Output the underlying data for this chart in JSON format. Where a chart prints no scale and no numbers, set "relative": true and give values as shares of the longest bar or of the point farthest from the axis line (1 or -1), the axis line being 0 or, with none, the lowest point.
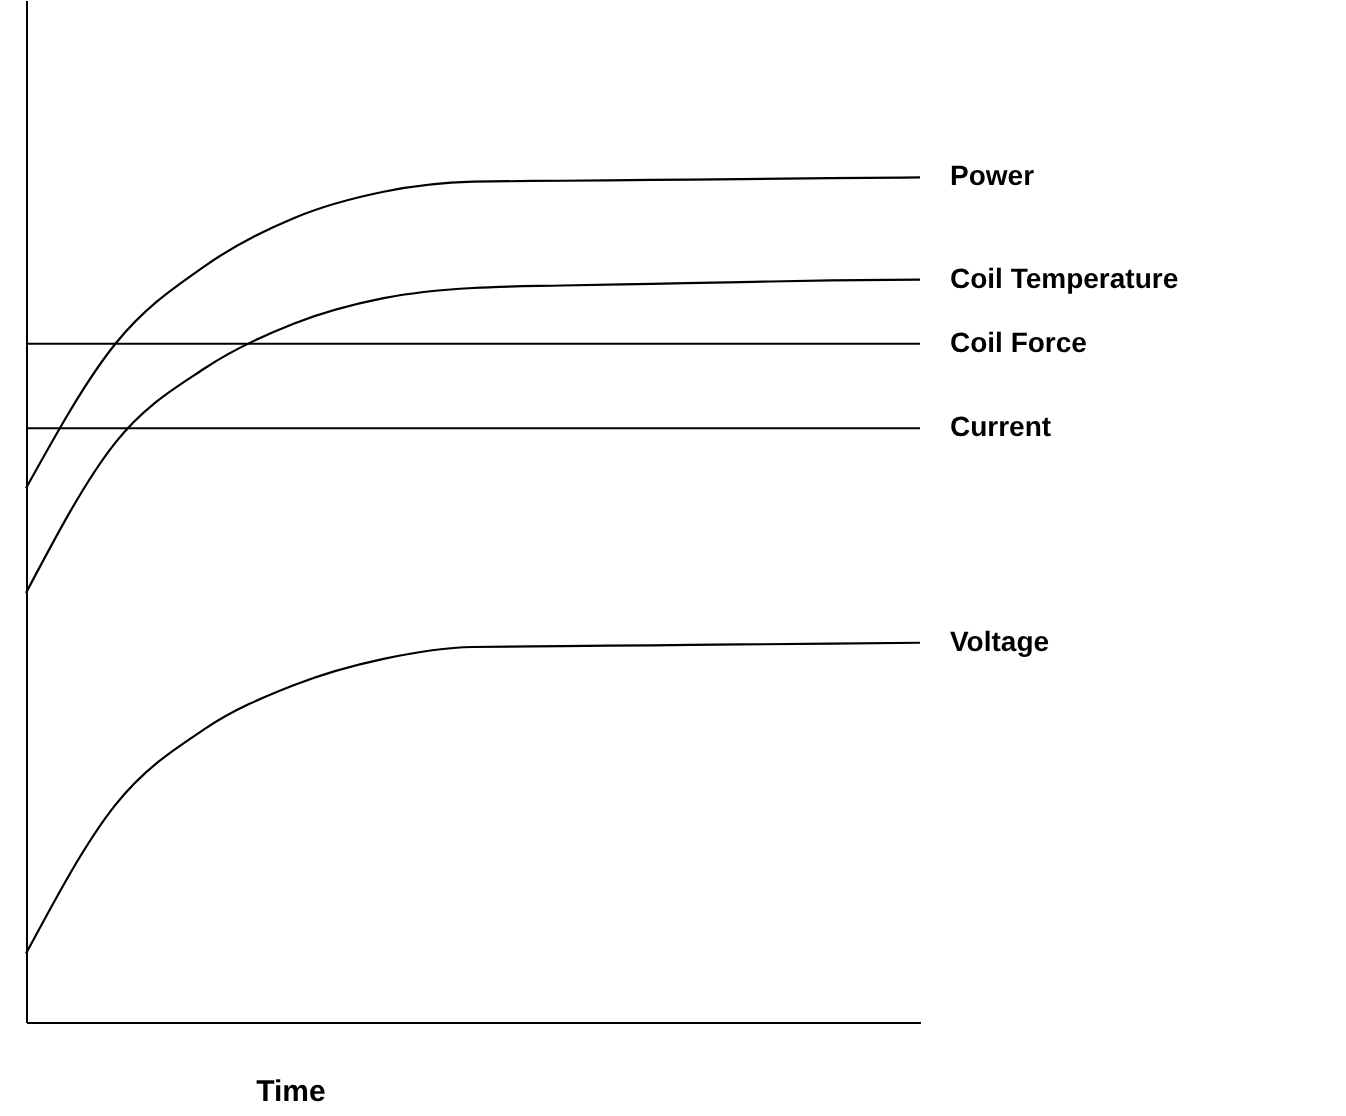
{
  "chart_data": {
    "type": "line",
    "relative": true,
    "xlabel": "Time",
    "categories": [
      null,
      null,
      null,
      null,
      null,
      null,
      null,
      null,
      null,
      null,
      null
    ],
    "series": [
      {
        "name": "Power",
        "color": "#000000",
        "values": [
          0.632,
          0.803,
          0.895,
          0.952,
          0.983,
          0.995,
          0.996,
          0.997,
          0.998,
          0.999,
          1
        ]
      },
      {
        "name": "Coil Temperature",
        "color": "#000000",
        "values": [
          0.508,
          0.686,
          0.774,
          0.827,
          0.857,
          0.869,
          0.872,
          0.874,
          0.876,
          0.878,
          0.879
        ]
      },
      {
        "name": "Coil Force",
        "color": "#000000",
        "values": [
          0.803,
          0.803,
          0.803,
          0.803,
          0.803,
          0.803,
          0.803,
          0.803,
          0.803,
          0.803,
          0.803
        ]
      },
      {
        "name": "Current",
        "color": "#000000",
        "values": [
          0.703,
          0.703,
          0.703,
          0.703,
          0.703,
          0.703,
          0.703,
          0.703,
          0.703,
          0.703,
          0.703
        ]
      },
      {
        "name": "Voltage",
        "color": "#000000",
        "values": [
          0.081,
          0.257,
          0.347,
          0.399,
          0.43,
          0.444,
          0.445,
          0.446,
          0.447,
          0.448,
          0.449
        ]
      }
    ],
    "grid": false,
    "marker": "none",
    "line_style": "solid"
  }
}
